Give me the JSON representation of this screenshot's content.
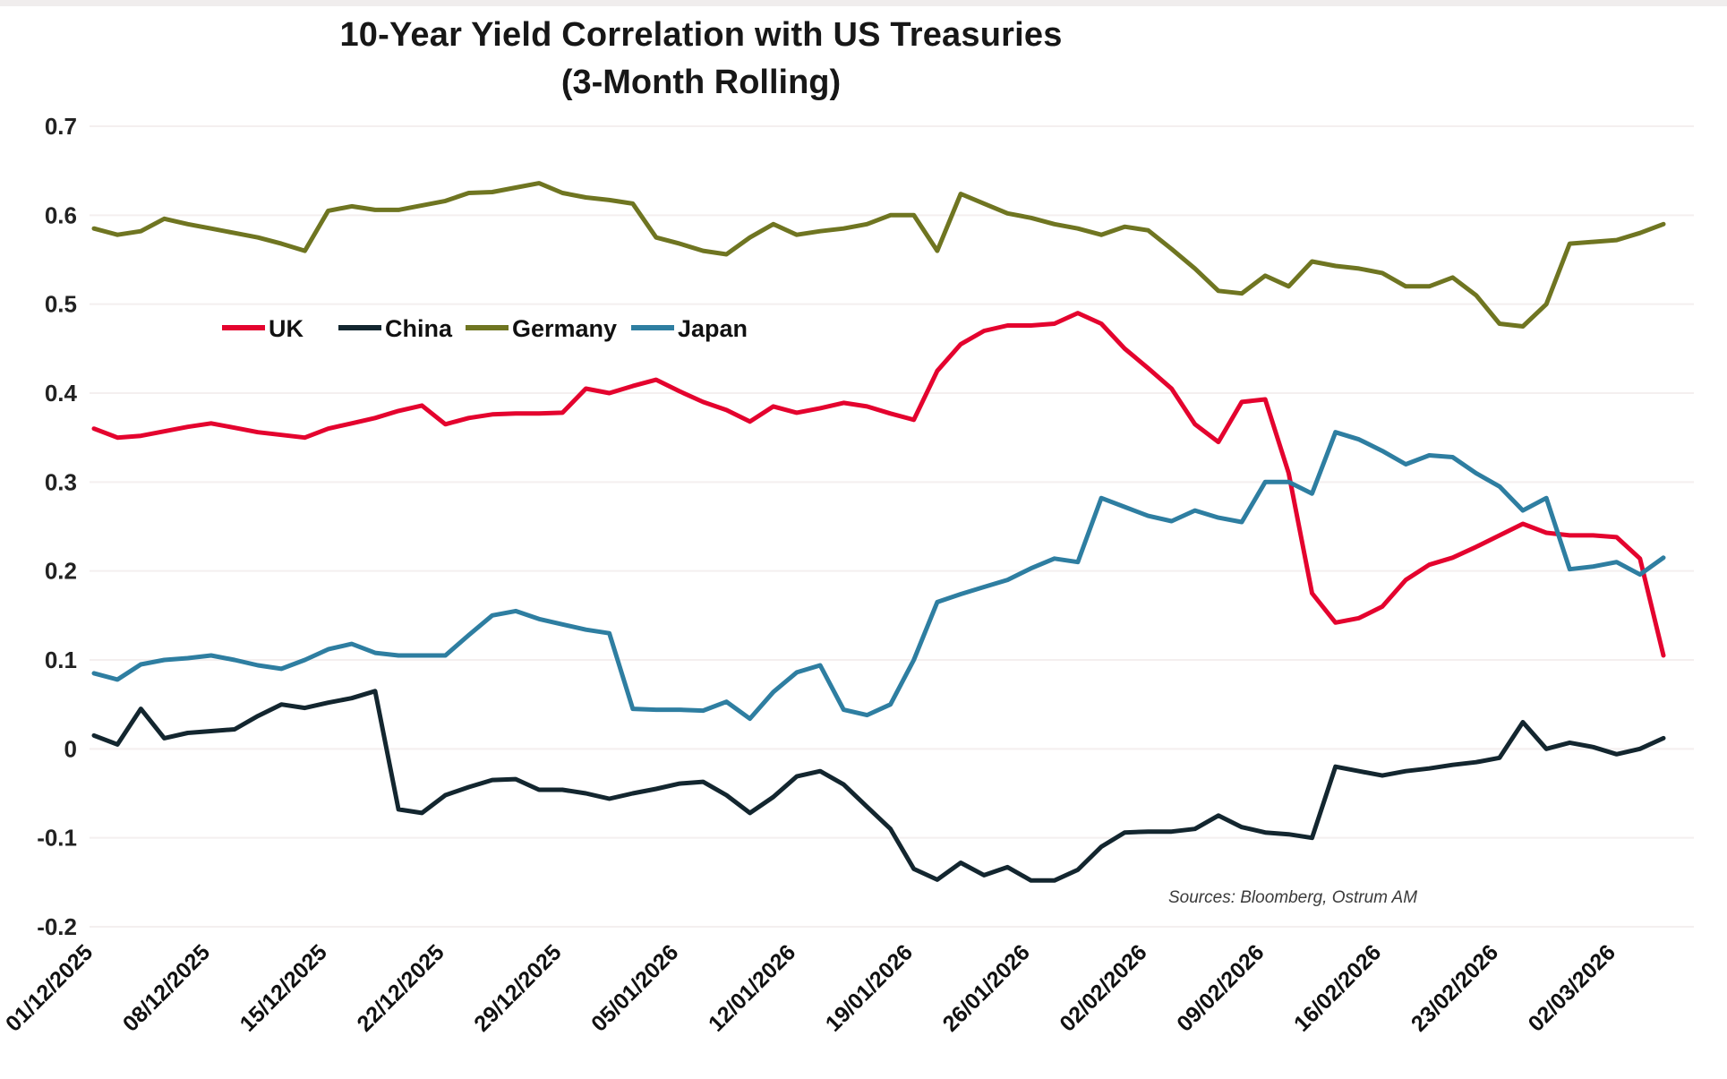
{
  "header": {
    "title": "10-Year Yield Correlation with US Treasuries",
    "subtitle": "(3-Month Rolling)"
  },
  "source_note": "Sources: Bloomberg, Ostrum AM",
  "chart_data": {
    "type": "line",
    "title": "10-Year Yield Correlation with US Treasuries",
    "subtitle": "(3-Month Rolling)",
    "xlabel": "",
    "ylabel": "",
    "ylim": [
      -0.2,
      0.7
    ],
    "y_ticks": [
      0.7,
      0.6,
      0.5,
      0.4,
      0.3,
      0.2,
      0.1,
      0,
      -0.1,
      -0.2
    ],
    "grid": "horizontal",
    "legend_position": "inside-upper-left",
    "x_tick_labels": [
      "01/12/2025",
      "08/12/2025",
      "15/12/2025",
      "22/12/2025",
      "29/12/2025",
      "05/01/2026",
      "12/01/2026",
      "19/01/2026",
      "26/01/2026",
      "02/02/2026",
      "09/02/2026",
      "16/02/2026",
      "23/02/2026",
      "02/03/2026"
    ],
    "x_tick_indices": [
      0,
      5,
      10,
      15,
      20,
      25,
      30,
      35,
      40,
      45,
      50,
      55,
      60,
      65
    ],
    "dates": [
      "01/12/2025",
      "02/12/2025",
      "03/12/2025",
      "04/12/2025",
      "05/12/2025",
      "08/12/2025",
      "09/12/2025",
      "10/12/2025",
      "11/12/2025",
      "12/12/2025",
      "15/12/2025",
      "16/12/2025",
      "17/12/2025",
      "18/12/2025",
      "19/12/2025",
      "22/12/2025",
      "23/12/2025",
      "24/12/2025",
      "25/12/2025",
      "26/12/2025",
      "29/12/2025",
      "30/12/2025",
      "31/12/2025",
      "01/01/2026",
      "02/01/2026",
      "05/01/2026",
      "06/01/2026",
      "07/01/2026",
      "08/01/2026",
      "09/01/2026",
      "12/01/2026",
      "13/01/2026",
      "14/01/2026",
      "15/01/2026",
      "16/01/2026",
      "19/01/2026",
      "20/01/2026",
      "21/01/2026",
      "22/01/2026",
      "23/01/2026",
      "26/01/2026",
      "27/01/2026",
      "28/01/2026",
      "29/01/2026",
      "30/01/2026",
      "02/02/2026",
      "03/02/2026",
      "04/02/2026",
      "05/02/2026",
      "06/02/2026",
      "09/02/2026",
      "10/02/2026",
      "11/02/2026",
      "12/02/2026",
      "13/02/2026",
      "16/02/2026",
      "17/02/2026",
      "18/02/2026",
      "19/02/2026",
      "20/02/2026",
      "23/02/2026",
      "24/02/2026",
      "25/02/2026",
      "26/02/2026",
      "27/02/2026",
      "02/03/2026",
      "03/03/2026",
      "04/03/2026"
    ],
    "series": [
      {
        "name": "UK",
        "color": "#e4032e",
        "values": [
          0.36,
          0.35,
          0.352,
          0.357,
          0.362,
          0.366,
          0.361,
          0.356,
          0.353,
          0.35,
          0.36,
          0.366,
          0.372,
          0.38,
          0.386,
          0.365,
          0.372,
          0.376,
          0.377,
          0.377,
          0.378,
          0.405,
          0.4,
          0.408,
          0.415,
          0.402,
          0.39,
          0.381,
          0.368,
          0.385,
          0.378,
          0.383,
          0.389,
          0.385,
          0.377,
          0.37,
          0.425,
          0.455,
          0.47,
          0.476,
          0.476,
          0.478,
          0.49,
          0.478,
          0.45,
          0.428,
          0.405,
          0.365,
          0.345,
          0.39,
          0.393,
          0.31,
          0.175,
          0.142,
          0.147,
          0.16,
          0.19,
          0.207,
          0.215,
          0.227,
          0.24,
          0.253,
          0.243,
          0.24,
          0.24,
          0.238,
          0.214,
          0.105
        ]
      },
      {
        "name": "China",
        "color": "#13262f",
        "values": [
          0.015,
          0.005,
          0.045,
          0.012,
          0.018,
          0.02,
          0.022,
          0.037,
          0.05,
          0.046,
          0.052,
          0.057,
          0.065,
          -0.068,
          -0.072,
          -0.052,
          -0.043,
          -0.035,
          -0.034,
          -0.046,
          -0.046,
          -0.05,
          -0.056,
          -0.05,
          -0.045,
          -0.039,
          -0.037,
          -0.052,
          -0.072,
          -0.054,
          -0.031,
          -0.025,
          -0.04,
          -0.065,
          -0.09,
          -0.135,
          -0.147,
          -0.128,
          -0.142,
          -0.133,
          -0.148,
          -0.148,
          -0.136,
          -0.11,
          -0.094,
          -0.093,
          -0.093,
          -0.09,
          -0.075,
          -0.088,
          -0.094,
          -0.096,
          -0.1,
          -0.02,
          -0.025,
          -0.03,
          -0.025,
          -0.022,
          -0.018,
          -0.015,
          -0.01,
          0.03,
          0.0,
          0.007,
          0.002,
          -0.006,
          0.0,
          0.012
        ]
      },
      {
        "name": "Germany",
        "color": "#6f7521",
        "values": [
          0.585,
          0.578,
          0.582,
          0.596,
          0.59,
          0.585,
          0.58,
          0.575,
          0.568,
          0.56,
          0.605,
          0.61,
          0.606,
          0.606,
          0.611,
          0.616,
          0.625,
          0.626,
          0.631,
          0.636,
          0.625,
          0.62,
          0.617,
          0.613,
          0.575,
          0.568,
          0.56,
          0.556,
          0.575,
          0.59,
          0.578,
          0.582,
          0.585,
          0.59,
          0.6,
          0.6,
          0.56,
          0.624,
          0.613,
          0.602,
          0.597,
          0.59,
          0.585,
          0.578,
          0.587,
          0.583,
          0.562,
          0.54,
          0.515,
          0.512,
          0.532,
          0.52,
          0.548,
          0.543,
          0.54,
          0.535,
          0.52,
          0.52,
          0.53,
          0.51,
          0.478,
          0.475,
          0.5,
          0.568,
          0.57,
          0.572,
          0.58,
          0.59
        ]
      },
      {
        "name": "Japan",
        "color": "#2e7ea1",
        "values": [
          0.085,
          0.078,
          0.095,
          0.1,
          0.102,
          0.105,
          0.1,
          0.094,
          0.09,
          0.1,
          0.112,
          0.118,
          0.108,
          0.105,
          0.105,
          0.105,
          0.128,
          0.15,
          0.155,
          0.146,
          0.14,
          0.134,
          0.13,
          0.045,
          0.044,
          0.044,
          0.043,
          0.053,
          0.034,
          0.064,
          0.086,
          0.094,
          0.044,
          0.038,
          0.05,
          0.1,
          0.165,
          0.174,
          0.182,
          0.19,
          0.203,
          0.214,
          0.21,
          0.282,
          0.272,
          0.262,
          0.256,
          0.268,
          0.26,
          0.255,
          0.3,
          0.3,
          0.287,
          0.356,
          0.348,
          0.335,
          0.32,
          0.33,
          0.328,
          0.31,
          0.295,
          0.268,
          0.282,
          0.202,
          0.205,
          0.21,
          0.196,
          0.215
        ]
      }
    ]
  }
}
